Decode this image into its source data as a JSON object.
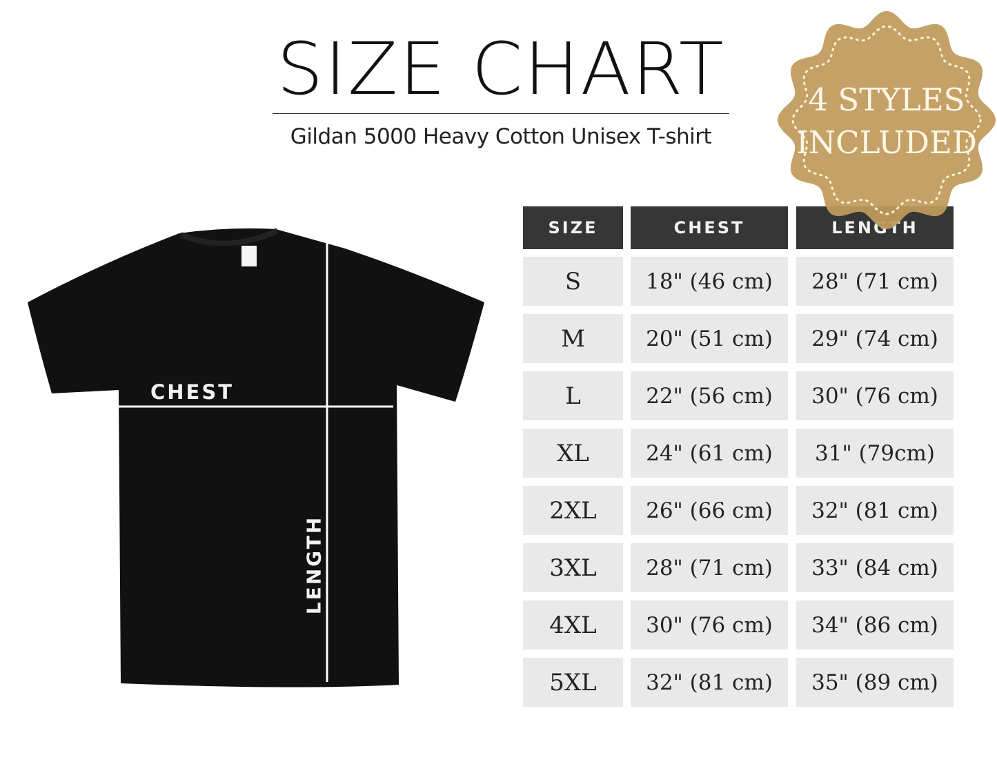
{
  "header": {
    "title": "SIZE CHART",
    "subtitle": "Gildan 5000 Heavy Cotton Unisex T-shirt"
  },
  "diagram": {
    "chest_label": "CHEST",
    "length_label": "LENGTH",
    "shirt_color": "#111111"
  },
  "badge": {
    "line1": "4 STYLES",
    "line2": "INCLUDED",
    "color": "#c09a5b"
  },
  "table": {
    "columns": [
      "SIZE",
      "CHEST",
      "LENGTH"
    ],
    "rows": [
      [
        "S",
        "18\" (46 cm)",
        "28\" (71 cm)"
      ],
      [
        "M",
        "20\" (51 cm)",
        "29\" (74 cm)"
      ],
      [
        "L",
        "22\" (56 cm)",
        "30\" (76 cm)"
      ],
      [
        "XL",
        "24\" (61 cm)",
        "31\" (79cm)"
      ],
      [
        "2XL",
        "26\" (66 cm)",
        "32\" (81 cm)"
      ],
      [
        "3XL",
        "28\" (71 cm)",
        "33\" (84 cm)"
      ],
      [
        "4XL",
        "30\" (76 cm)",
        "34\" (86 cm)"
      ],
      [
        "5XL",
        "32\" (81 cm)",
        "35\" (89 cm)"
      ]
    ]
  }
}
